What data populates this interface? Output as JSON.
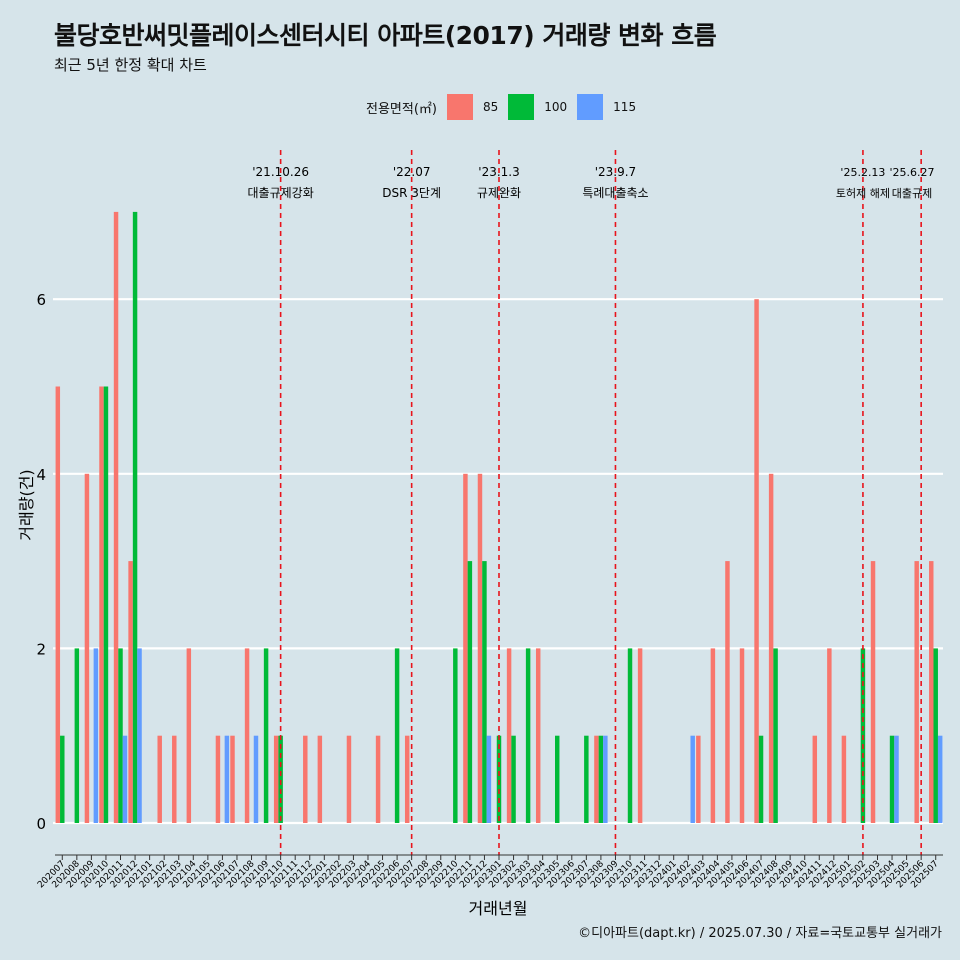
{
  "header": {
    "title": "불당호반써밋플레이스센터시티 아파트(2017) 거래량 변화 흐름",
    "subtitle": "최근 5년 한정 확대 차트"
  },
  "caption": "©디아파트(dapt.kr) / 2025.07.30 / 자료=국토교통부 실거래가",
  "legend": {
    "title": "전용면적(㎡)",
    "items": [
      {
        "label": "85",
        "color": "#f8766d"
      },
      {
        "label": "100",
        "color": "#00ba38"
      },
      {
        "label": "115",
        "color": "#619cff"
      }
    ]
  },
  "chart_data": {
    "type": "bar",
    "xlabel": "거래년월",
    "ylabel": "거래량(건)",
    "ylim": [
      0,
      7
    ],
    "yticks": [
      0,
      2,
      4,
      6
    ],
    "grid": true,
    "categories": [
      "202007",
      "202008",
      "202009",
      "202010",
      "202011",
      "202012",
      "202101",
      "202102",
      "202103",
      "202104",
      "202105",
      "202106",
      "202107",
      "202108",
      "202109",
      "202110",
      "202111",
      "202112",
      "202201",
      "202202",
      "202203",
      "202204",
      "202205",
      "202206",
      "202207",
      "202208",
      "202209",
      "202210",
      "202211",
      "202212",
      "202301",
      "202302",
      "202303",
      "202304",
      "202305",
      "202306",
      "202307",
      "202308",
      "202309",
      "202310",
      "202311",
      "202312",
      "202401",
      "202402",
      "202403",
      "202404",
      "202405",
      "202406",
      "202407",
      "202408",
      "202409",
      "202410",
      "202411",
      "202412",
      "202501",
      "202502",
      "202503",
      "202504",
      "202505",
      "202506",
      "202507"
    ],
    "series": [
      {
        "name": "85",
        "color": "#f8766d",
        "values": [
          5,
          0,
          4,
          5,
          7,
          3,
          0,
          1,
          1,
          2,
          0,
          1,
          1,
          2,
          0,
          1,
          0,
          1,
          1,
          0,
          1,
          0,
          1,
          0,
          1,
          0,
          0,
          0,
          4,
          4,
          0,
          2,
          0,
          2,
          0,
          0,
          0,
          1,
          0,
          0,
          2,
          0,
          0,
          0,
          1,
          2,
          3,
          2,
          6,
          4,
          0,
          0,
          1,
          2,
          1,
          0,
          3,
          0,
          0,
          3,
          3
        ]
      },
      {
        "name": "100",
        "color": "#00ba38",
        "values": [
          1,
          2,
          0,
          5,
          2,
          7,
          0,
          0,
          0,
          0,
          0,
          0,
          0,
          0,
          2,
          1,
          0,
          0,
          0,
          0,
          0,
          0,
          0,
          2,
          0,
          0,
          0,
          2,
          3,
          3,
          1,
          1,
          2,
          0,
          1,
          0,
          1,
          1,
          0,
          2,
          0,
          0,
          0,
          0,
          0,
          0,
          0,
          0,
          1,
          2,
          0,
          0,
          0,
          0,
          0,
          2,
          0,
          1,
          0,
          0,
          2
        ]
      },
      {
        "name": "115",
        "color": "#619cff",
        "values": [
          0,
          0,
          2,
          0,
          1,
          2,
          0,
          0,
          0,
          0,
          0,
          1,
          0,
          1,
          0,
          0,
          0,
          0,
          0,
          0,
          0,
          0,
          0,
          0,
          0,
          0,
          0,
          0,
          0,
          1,
          0,
          0,
          0,
          0,
          0,
          0,
          0,
          1,
          0,
          0,
          0,
          0,
          0,
          1,
          0,
          0,
          0,
          0,
          0,
          0,
          0,
          0,
          0,
          0,
          0,
          0,
          0,
          1,
          0,
          0,
          1
        ]
      }
    ],
    "annotations": [
      {
        "x": "202110",
        "date": "'21.10.26",
        "label": "대출규제강화"
      },
      {
        "x": "202207",
        "date": "'22.07",
        "label": "DSR 3단계"
      },
      {
        "x": "202301",
        "date": "'23.1.3",
        "label": "규제완화"
      },
      {
        "x": "202309",
        "date": "'23.9.7",
        "label": "특례대출축소"
      },
      {
        "x": "202502",
        "date": "'25.2.13",
        "label": "토허제 해제"
      },
      {
        "x": "202506",
        "date": "'25.6.27",
        "label": "대출규제"
      }
    ]
  }
}
